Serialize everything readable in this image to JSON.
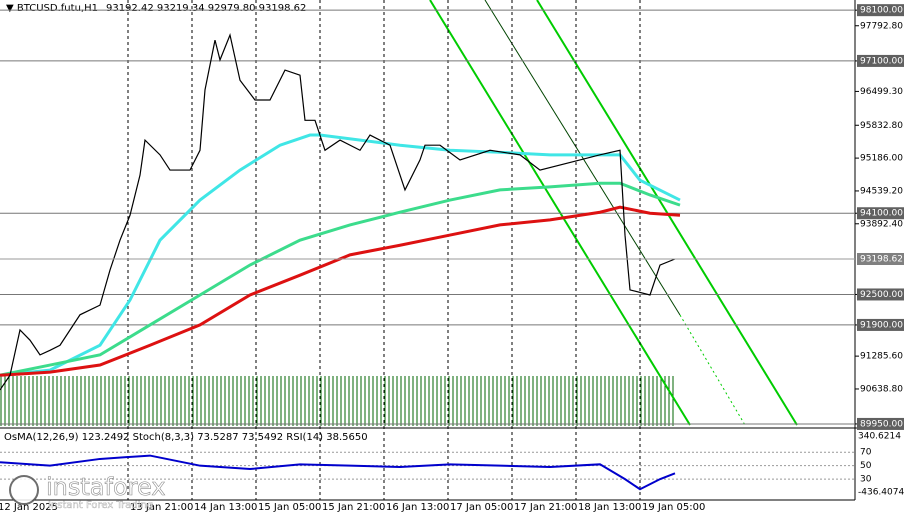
{
  "header": {
    "symbol": "BTCUSD.futu,H1",
    "ohlc": "93192.42 93219.34 92979.80 93198.62"
  },
  "logo": {
    "brand": "instaforex",
    "tagline": "Instant Forex Trading"
  },
  "chart_data": {
    "type": "line",
    "xlim": [
      -48,
      165.75
    ],
    "ylim": [
      89870,
      98300
    ],
    "xticks": [
      {
        "value": -49,
        "label": "12 Jan 2025"
      },
      {
        "value": -16,
        "label": "13 Jan 21:00"
      },
      {
        "value": 0,
        "label": "14 Jan 13:00"
      },
      {
        "value": 16,
        "label": "15 Jan 05:00"
      },
      {
        "value": 32,
        "label": "15 Jan 21:00"
      },
      {
        "value": 48,
        "label": "16 Jan 13:00"
      },
      {
        "value": 64,
        "label": "17 Jan 05:00"
      },
      {
        "value": 80,
        "label": "17 Jan 21:00"
      },
      {
        "value": 96,
        "label": "18 Jan 13:00"
      },
      {
        "value": 112,
        "label": "19 Jan 05:00"
      }
    ],
    "yticks": [
      {
        "value": 98100,
        "label": "98100.00"
      },
      {
        "value": 97792.8,
        "label": "97792.80"
      },
      {
        "value": 97100,
        "label": "97100.00"
      },
      {
        "value": 96499.3,
        "label": "96499.30"
      },
      {
        "value": 95832.8,
        "label": "95832.80"
      },
      {
        "value": 95186,
        "label": "95186.00"
      },
      {
        "value": 94539.2,
        "label": "94539.20"
      },
      {
        "value": 94100,
        "label": "94100.00"
      },
      {
        "value": 93892.4,
        "label": "93892.40"
      },
      {
        "value": 92500,
        "label": "92500.00"
      },
      {
        "value": 91900,
        "label": "91900.00"
      },
      {
        "value": 91285.6,
        "label": "91285.60"
      },
      {
        "value": 90638.8,
        "label": "90638.80"
      },
      {
        "value": 89950,
        "label": "89950.00"
      }
    ],
    "levels": [
      98100,
      97100,
      94100,
      92500,
      91900,
      89950
    ],
    "last_price": 93198.62,
    "series": [
      {
        "color": "#000000",
        "x": [
          -48,
          -45.5,
          -43,
          -40.5,
          -38,
          -35.5,
          -33,
          -30.5,
          -28,
          -23,
          -20.5,
          -18,
          -15.5,
          -13,
          -11.75,
          -8,
          -5.5,
          -0.5,
          2,
          3.25,
          5.75,
          7,
          9.5,
          12,
          15.75,
          19.5,
          23.25,
          27,
          28.25,
          30.75,
          33.25,
          37,
          42,
          44.5,
          49.5,
          53.25,
          57,
          58.25,
          62,
          67,
          74.5,
          82,
          87,
          97,
          102,
          107,
          108.25,
          109.5,
          114.5,
          117,
          120.75
        ],
        "values": [
          90620,
          90910,
          91800,
          91600,
          91310,
          91400,
          91500,
          91800,
          92100,
          92290,
          92980,
          93570,
          94060,
          94850,
          95540,
          95250,
          94950,
          94950,
          95340,
          96530,
          97510,
          97120,
          97610,
          96720,
          96330,
          96330,
          96920,
          96820,
          95930,
          95930,
          95340,
          95540,
          95340,
          95640,
          95440,
          94560,
          95150,
          95440,
          95440,
          95150,
          95340,
          95250,
          94950,
          95150,
          95250,
          95340,
          93670,
          92590,
          92490,
          93080,
          93198.62
        ]
      },
      {
        "color": "#40e6e6",
        "x": [
          -48,
          -35.5,
          -23,
          -15.5,
          -8,
          2,
          12,
          22,
          29.5,
          32,
          52,
          64.5,
          77,
          89.5,
          102,
          107,
          112,
          122
        ],
        "values": [
          90910,
          91010,
          91500,
          92390,
          93570,
          94360,
          94950,
          95440,
          95640,
          95640,
          95440,
          95340,
          95300,
          95250,
          95250,
          95250,
          94750,
          94360
        ]
      },
      {
        "color": "#3cdc8c",
        "x": [
          -48,
          -35.5,
          -23,
          -10.5,
          2,
          14.5,
          27,
          39.5,
          52,
          64.5,
          77,
          89.5,
          102,
          107,
          114.5,
          122
        ],
        "values": [
          90910,
          91110,
          91310,
          91900,
          92490,
          93080,
          93570,
          93870,
          94120,
          94360,
          94560,
          94620,
          94690,
          94690,
          94460,
          94260
        ]
      },
      {
        "color": "#dd1111",
        "x": [
          -48,
          -35.5,
          -23,
          -10.5,
          2,
          14.5,
          27,
          39.5,
          52,
          64.5,
          77,
          89.5,
          102,
          107,
          114.5,
          122
        ],
        "values": [
          90910,
          90970,
          91110,
          91500,
          91900,
          92490,
          92880,
          93280,
          93470,
          93670,
          93870,
          93970,
          94120,
          94220,
          94100,
          94060
        ]
      }
    ]
  },
  "indicator": {
    "title": "OsMA(12,26,9) 123.2492  Stoch(8,3,3) 73.5287 73.5492  RSI(14) 38.5650",
    "top_label": 340.6214,
    "bottom_label": -436.4074,
    "ylim": [
      -1,
      103
    ],
    "yticks": [
      70,
      50,
      30
    ],
    "rsi": {
      "color": "#0000cc",
      "x": [
        -48,
        -35.5,
        -23,
        -10.5,
        2,
        14.5,
        27,
        39.5,
        52,
        64.5,
        77,
        89.5,
        102,
        108.25,
        112,
        117,
        120.75
      ],
      "values": [
        55,
        50,
        60,
        65,
        50,
        45,
        52,
        50,
        48,
        52,
        50,
        48,
        52,
        30,
        15,
        30,
        38.565
      ]
    }
  }
}
